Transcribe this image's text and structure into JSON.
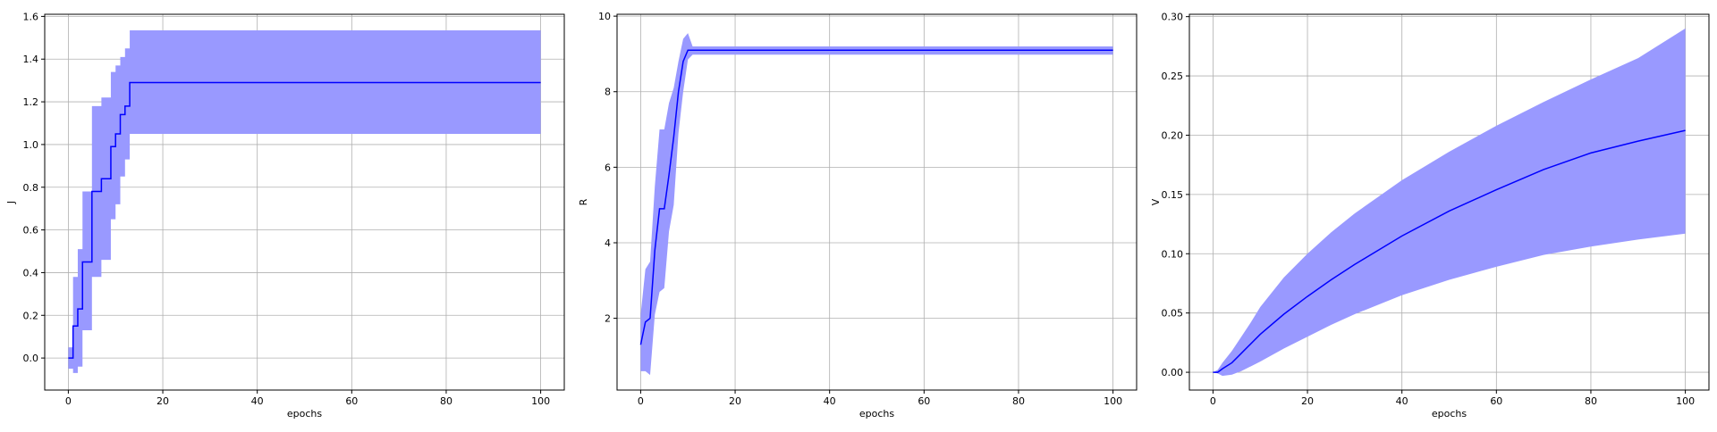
{
  "colors": {
    "line": "#0000ff",
    "band": "#9999ff",
    "grid": "#b0b0b0",
    "axes": "#000000",
    "background": "#ffffff"
  },
  "chart_data": [
    {
      "type": "line",
      "xlabel": "epochs",
      "ylabel": "J",
      "xlim": [
        -5,
        105
      ],
      "ylim": [
        -0.15,
        1.61
      ],
      "xticks": [
        0,
        20,
        40,
        60,
        80,
        100
      ],
      "xtick_labels": [
        "0",
        "20",
        "40",
        "60",
        "80",
        "100"
      ],
      "yticks": [
        0.0,
        0.2,
        0.4,
        0.6,
        0.8,
        1.0,
        1.2,
        1.4,
        1.6
      ],
      "ytick_labels": [
        "0.0",
        "0.2",
        "0.4",
        "0.6",
        "0.8",
        "1.0",
        "1.2",
        "1.4",
        "1.6"
      ],
      "grid": true,
      "step": true,
      "x": [
        0,
        1,
        2,
        3,
        4,
        5,
        6,
        7,
        8,
        9,
        10,
        11,
        12,
        13,
        100
      ],
      "mean": [
        0.0,
        0.15,
        0.23,
        0.45,
        0.45,
        0.78,
        0.78,
        0.84,
        0.84,
        0.99,
        1.05,
        1.14,
        1.18,
        1.29,
        1.29
      ],
      "upper": [
        0.05,
        0.38,
        0.51,
        0.78,
        0.78,
        1.18,
        1.18,
        1.22,
        1.22,
        1.34,
        1.37,
        1.41,
        1.45,
        1.535,
        1.535
      ],
      "lower": [
        -0.05,
        -0.07,
        -0.04,
        0.13,
        0.13,
        0.38,
        0.38,
        0.46,
        0.46,
        0.65,
        0.72,
        0.85,
        0.93,
        1.05,
        1.05
      ]
    },
    {
      "type": "line",
      "xlabel": "epochs",
      "ylabel": "R",
      "xlim": [
        -5,
        105
      ],
      "ylim": [
        0.1,
        10.05
      ],
      "xticks": [
        0,
        20,
        40,
        60,
        80,
        100
      ],
      "xtick_labels": [
        "0",
        "20",
        "40",
        "60",
        "80",
        "100"
      ],
      "yticks": [
        2,
        4,
        6,
        8,
        10
      ],
      "ytick_labels": [
        "2",
        "4",
        "6",
        "8",
        "10"
      ],
      "grid": true,
      "step": false,
      "x": [
        0,
        1,
        2,
        3,
        4,
        5,
        6,
        7,
        8,
        9,
        10,
        11,
        12,
        13,
        100
      ],
      "mean": [
        1.3,
        1.9,
        2.0,
        3.8,
        4.9,
        4.9,
        5.8,
        6.8,
        8.0,
        8.8,
        9.1,
        9.1,
        9.1,
        9.1,
        9.1
      ],
      "upper": [
        2.1,
        3.3,
        3.5,
        5.5,
        7.0,
        7.0,
        7.7,
        8.1,
        8.8,
        9.4,
        9.55,
        9.2,
        9.2,
        9.2,
        9.2
      ],
      "lower": [
        0.6,
        0.6,
        0.5,
        2.1,
        2.7,
        2.8,
        4.3,
        5.0,
        6.9,
        8.0,
        8.85,
        8.98,
        8.98,
        8.98,
        8.98
      ]
    },
    {
      "type": "line",
      "xlabel": "epochs",
      "ylabel": "V",
      "xlim": [
        -5,
        105
      ],
      "ylim": [
        -0.015,
        0.302
      ],
      "xticks": [
        0,
        20,
        40,
        60,
        80,
        100
      ],
      "xtick_labels": [
        "0",
        "20",
        "40",
        "60",
        "80",
        "100"
      ],
      "yticks": [
        0.0,
        0.05,
        0.1,
        0.15,
        0.2,
        0.25,
        0.3
      ],
      "ytick_labels": [
        "0.00",
        "0.05",
        "0.10",
        "0.15",
        "0.20",
        "0.25",
        "0.30"
      ],
      "grid": true,
      "step": false,
      "x": [
        0,
        1,
        2,
        4,
        6,
        8,
        10,
        15,
        20,
        25,
        30,
        40,
        50,
        60,
        70,
        80,
        90,
        100
      ],
      "mean": [
        0.0,
        0.0,
        0.003,
        0.008,
        0.016,
        0.024,
        0.032,
        0.049,
        0.064,
        0.078,
        0.091,
        0.115,
        0.136,
        0.154,
        0.171,
        0.185,
        0.195,
        0.204
      ],
      "upper": [
        0.0,
        0.002,
        0.008,
        0.018,
        0.03,
        0.042,
        0.055,
        0.08,
        0.1,
        0.118,
        0.134,
        0.162,
        0.186,
        0.208,
        0.228,
        0.247,
        0.265,
        0.29
      ],
      "lower": [
        0.0,
        -0.001,
        -0.003,
        -0.002,
        0.001,
        0.005,
        0.009,
        0.02,
        0.03,
        0.04,
        0.049,
        0.065,
        0.078,
        0.089,
        0.099,
        0.106,
        0.112,
        0.117
      ]
    }
  ]
}
